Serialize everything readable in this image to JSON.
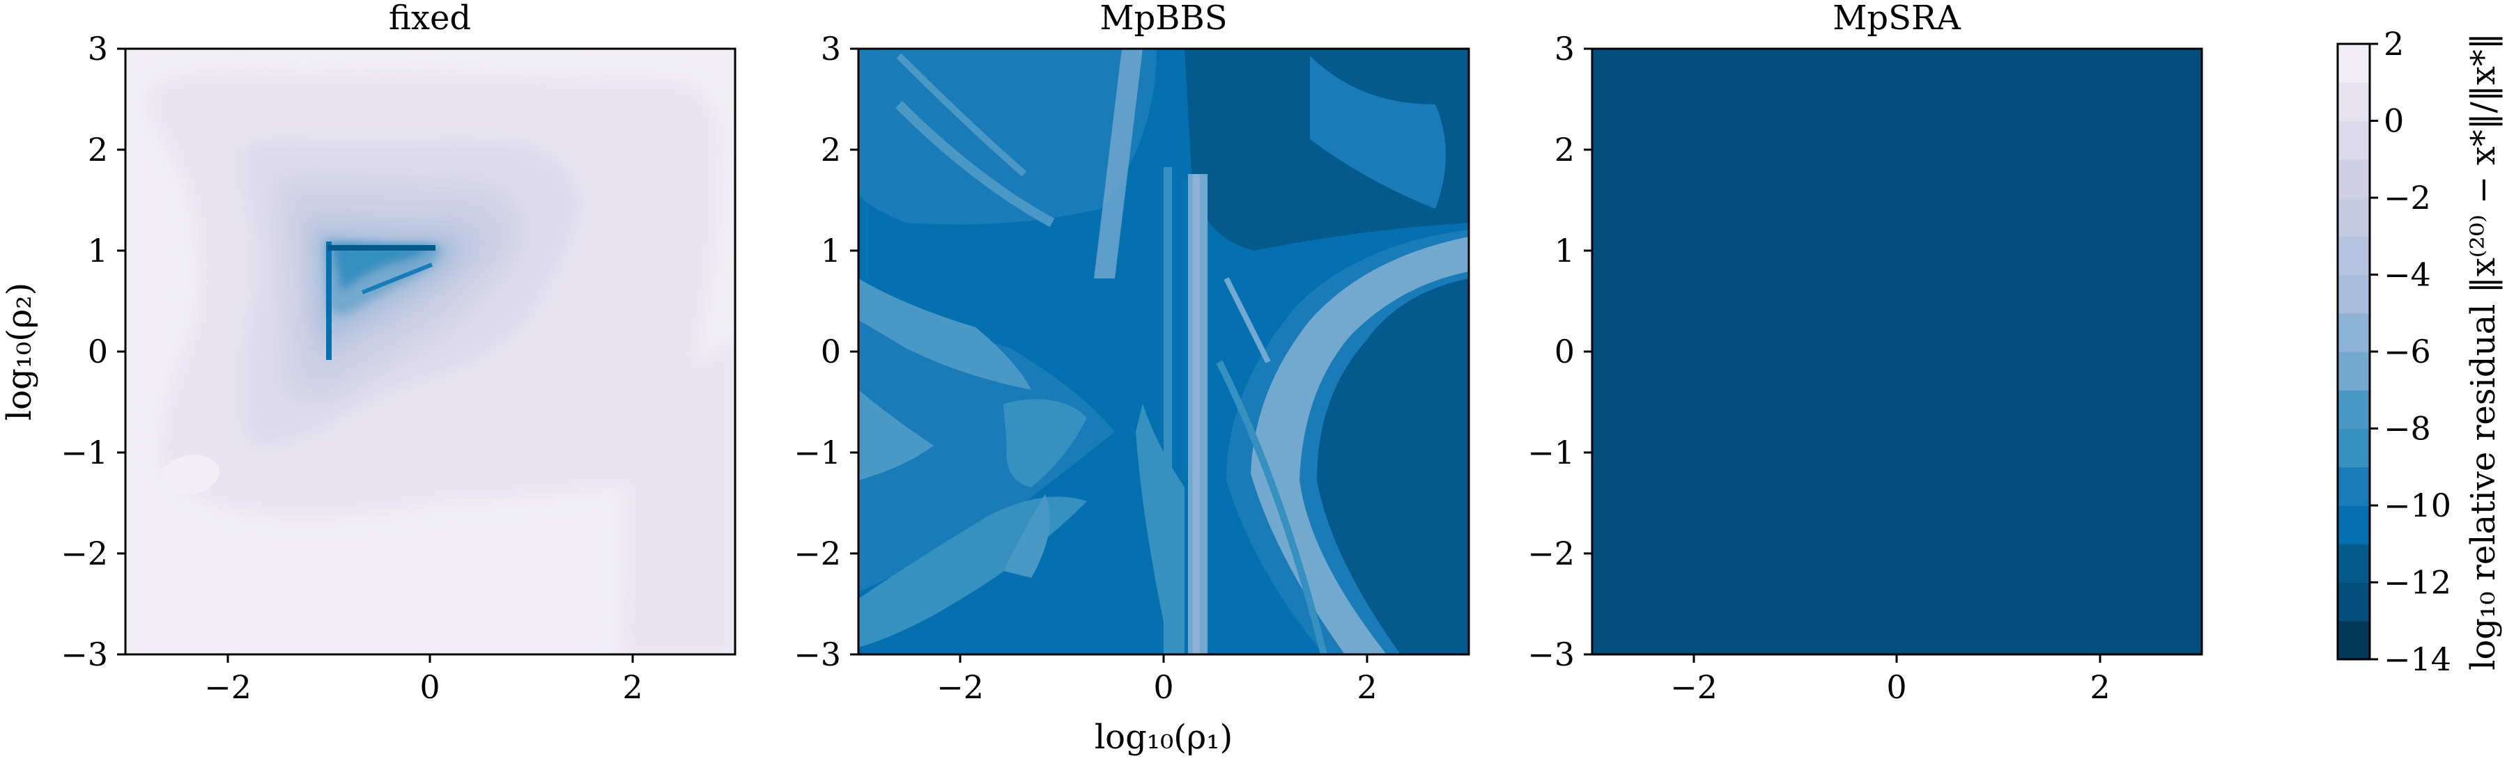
{
  "figure": {
    "xlabel": "log₁₀(ρ₁)",
    "ylabel": "log₁₀(ρ₂)",
    "colorbar_label": "log₁₀ relative residual ‖x⁽²⁰⁾ − x*‖/‖x*‖"
  },
  "chart_data": {
    "type": "heatmap",
    "xlim": [
      -3,
      3
    ],
    "ylim": [
      -3,
      3
    ],
    "xticks": [
      -2,
      0,
      2
    ],
    "yticks": [
      -3,
      -2,
      -1,
      0,
      1,
      2,
      3
    ],
    "xtick_labels": [
      "−2",
      "0",
      "2"
    ],
    "ytick_labels": [
      "−3",
      "−2",
      "−1",
      "0",
      "1",
      "2",
      "3"
    ],
    "panels": [
      {
        "title": "fixed",
        "description_level": "mostly -1 to 1 with a deep minimum near (-1, 0.5) reaching about -12"
      },
      {
        "title": "MpBBS",
        "description_level": "mostly about -10 to -12 with bands near -6 to -8"
      },
      {
        "title": "MpSRA",
        "description_level": "uniform about -14"
      }
    ],
    "colorbar": {
      "vmin": -14,
      "vmax": 2,
      "levels": [
        -14,
        -13,
        -12,
        -11,
        -10,
        -9,
        -8,
        -7,
        -6,
        -5,
        -4,
        -3,
        -2,
        -1,
        0,
        1,
        2
      ],
      "tick_values": [
        2,
        0,
        -2,
        -4,
        -6,
        -8,
        -10,
        -12,
        -14
      ],
      "tick_labels": [
        "2",
        "0",
        "−2",
        "−4",
        "−6",
        "−8",
        "−10",
        "−12",
        "−14"
      ],
      "colors": [
        "#023858",
        "#034e7b",
        "#045a8d",
        "#0570b0",
        "#1a7bb9",
        "#3690c0",
        "#4a98c5",
        "#74a9cf",
        "#8cb3d6",
        "#a6bddb",
        "#b4c4df",
        "#c4cbe3",
        "#d0d1e6",
        "#dcdaeb",
        "#e7e3f0",
        "#f1eef6"
      ]
    }
  }
}
